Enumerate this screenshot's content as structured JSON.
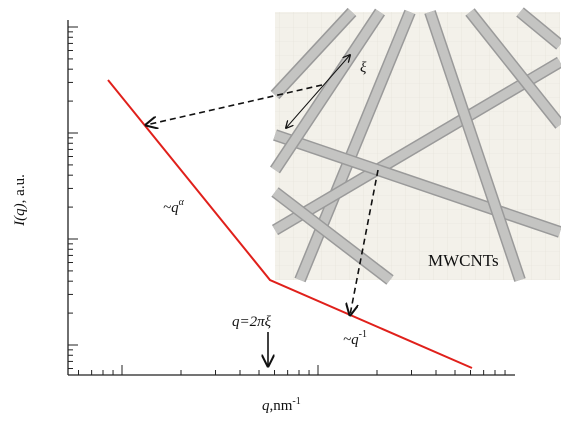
{
  "axes": {
    "y_label": {
      "symbol": "I(q)",
      "unit": ", a.u."
    },
    "x_label": {
      "symbol": "q",
      "unit": ",nm",
      "exponent": "-1"
    }
  },
  "annotations": {
    "slope_low": {
      "prefix": "~q",
      "exponent": "α"
    },
    "slope_high": {
      "prefix": "~q",
      "exponent": "-1"
    },
    "crossover": {
      "lhs": "q",
      "rhs": "=2πξ"
    }
  },
  "inset": {
    "length_symbol": "ξ",
    "label": "MWCNTs"
  }
}
